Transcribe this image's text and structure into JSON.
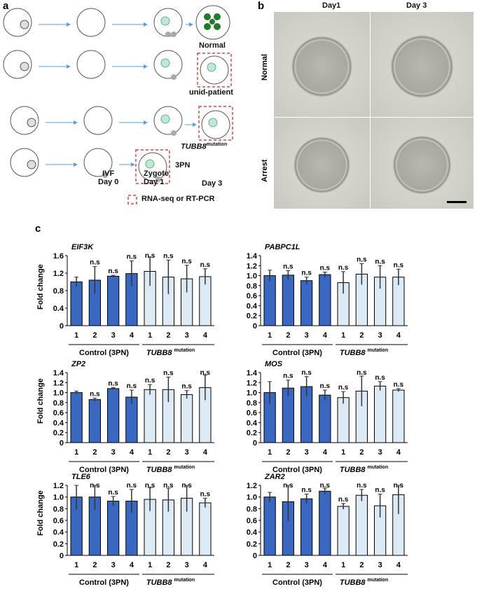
{
  "panel_a": {
    "label": "a",
    "outcomes": [
      "Normal",
      "unid-patient",
      "TUBB8",
      "mutation",
      "3PN"
    ],
    "stages": [
      {
        "name": "IVF",
        "day": "Day 0"
      },
      {
        "name": "Zygote",
        "day": "Day 1"
      },
      {
        "name": "",
        "day": "Day 3"
      }
    ],
    "legend": "RNA-seq or RT-PCR",
    "colors": {
      "arrow": "#5aa0d8",
      "dashed_box": "#e8403a",
      "cell": "#bfe8d0",
      "normal_cell": "#1f7a2a"
    }
  },
  "panel_b": {
    "label": "b",
    "columns": [
      "Day1",
      "Day 3"
    ],
    "rows": [
      "Normal",
      "Arrest"
    ]
  },
  "panel_c": {
    "label": "c",
    "ylabel": "Fold change",
    "group1": "Control (3PN)",
    "group2_gene": "TUBB8",
    "group2_sup": "mutation",
    "sig": "n.s"
  },
  "chart_data": [
    {
      "type": "bar",
      "title": "EIF3K",
      "categories": [
        "1",
        "2",
        "3",
        "4",
        "1",
        "2",
        "3",
        "4"
      ],
      "ylim": [
        0,
        1.6
      ],
      "yticks": [
        "0",
        "0.4",
        "0.8",
        "1.2",
        "1.6"
      ],
      "values": [
        1.0,
        1.04,
        1.13,
        1.19,
        1.24,
        1.11,
        1.07,
        1.12
      ],
      "errors": [
        0.11,
        0.31,
        0.02,
        0.29,
        0.33,
        0.39,
        0.31,
        0.18
      ]
    },
    {
      "type": "bar",
      "title": "PABPC1L",
      "categories": [
        "1",
        "2",
        "3",
        "4",
        "1",
        "2",
        "3",
        "4"
      ],
      "ylim": [
        0,
        1.4
      ],
      "yticks": [
        "0",
        "0.2",
        "0.4",
        "0.6",
        "0.8",
        "1.0",
        "1.2",
        "1.4"
      ],
      "values": [
        1.0,
        1.01,
        0.9,
        1.02,
        0.86,
        1.03,
        0.97,
        0.97
      ],
      "errors": [
        0.11,
        0.09,
        0.07,
        0.05,
        0.22,
        0.21,
        0.23,
        0.16
      ]
    },
    {
      "type": "bar",
      "title": "ZP2",
      "categories": [
        "1",
        "2",
        "3",
        "4",
        "1",
        "2",
        "3",
        "4"
      ],
      "ylim": [
        0,
        1.4
      ],
      "yticks": [
        "0",
        "0.2",
        "0.4",
        "0.6",
        "0.8",
        "1.0",
        "1.2",
        "1.4"
      ],
      "values": [
        1.0,
        0.86,
        1.08,
        0.91,
        1.06,
        1.06,
        0.96,
        1.1
      ],
      "errors": [
        0.03,
        0.03,
        0.02,
        0.14,
        0.1,
        0.25,
        0.08,
        0.25
      ]
    },
    {
      "type": "bar",
      "title": "MOS",
      "categories": [
        "1",
        "2",
        "3",
        "4",
        "1",
        "2",
        "3",
        "4"
      ],
      "ylim": [
        0,
        1.4
      ],
      "yticks": [
        "0",
        "0.2",
        "0.4",
        "0.6",
        "0.8",
        "1.0",
        "1.2",
        "1.4"
      ],
      "values": [
        1.0,
        1.09,
        1.12,
        0.95,
        0.9,
        1.03,
        1.13,
        1.05
      ],
      "errors": [
        0.22,
        0.16,
        0.2,
        0.1,
        0.12,
        0.3,
        0.09,
        0.03
      ]
    },
    {
      "type": "bar",
      "title": "TLE6",
      "categories": [
        "1",
        "2",
        "3",
        "4",
        "1",
        "2",
        "3",
        "4"
      ],
      "ylim": [
        0,
        1.2
      ],
      "yticks": [
        "0",
        "0.2",
        "0.4",
        "0.6",
        "0.8",
        "1.0",
        "1.2"
      ],
      "values": [
        1.0,
        1.0,
        0.93,
        0.93,
        0.96,
        0.95,
        0.98,
        0.9
      ],
      "errors": [
        0.22,
        0.22,
        0.08,
        0.2,
        0.2,
        0.2,
        0.23,
        0.08
      ]
    },
    {
      "type": "bar",
      "title": "ZAR2",
      "categories": [
        "1",
        "2",
        "3",
        "4",
        "1",
        "2",
        "3",
        "4"
      ],
      "ylim": [
        0,
        1.2
      ],
      "yticks": [
        "0",
        "0.2",
        "0.4",
        "0.6",
        "0.8",
        "1.0",
        "1.2"
      ],
      "values": [
        1.0,
        0.92,
        0.97,
        1.1,
        0.84,
        1.03,
        0.85,
        1.04
      ],
      "errors": [
        0.08,
        0.33,
        0.08,
        0.05,
        0.05,
        0.1,
        0.2,
        0.33
      ]
    }
  ],
  "colors": {
    "control_bar": "#3a68c0",
    "mutation_bar": "#dceaf6"
  }
}
